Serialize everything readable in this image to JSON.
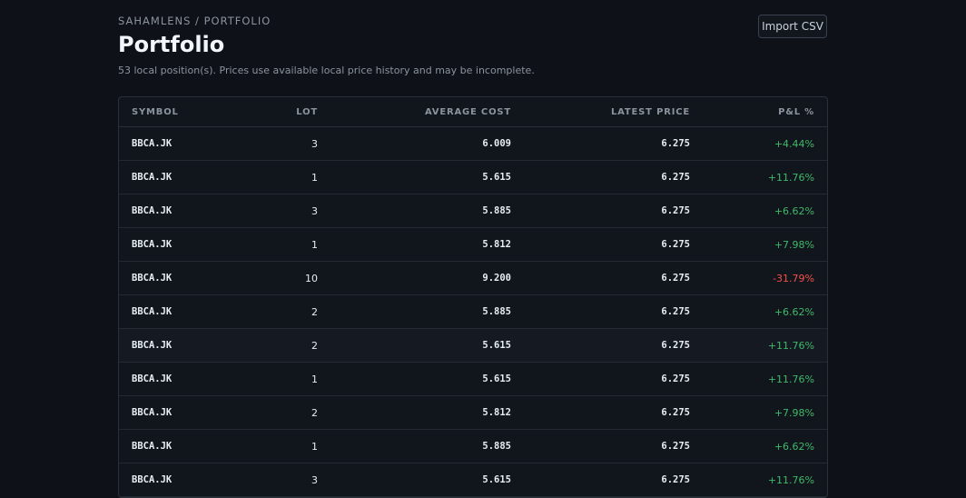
{
  "header": {
    "breadcrumb": "SAHAMLENS / PORTFOLIO",
    "title": "Portfolio",
    "subtitle": "53 local position(s). Prices use available local price history and may be incomplete.",
    "button": "Import CSV"
  },
  "table": {
    "columns": [
      "SYMBOL",
      "LOT",
      "AVERAGE COST",
      "LATEST PRICE",
      "P&L %"
    ],
    "rows": [
      [
        "BBCA.JK",
        "3",
        "6.009",
        "6.275",
        "+4.44%"
      ],
      [
        "BBCA.JK",
        "1",
        "5.615",
        "6.275",
        "+11.76%"
      ],
      [
        "BBCA.JK",
        "3",
        "5.885",
        "6.275",
        "+6.62%"
      ],
      [
        "BBCA.JK",
        "1",
        "5.812",
        "6.275",
        "+7.98%"
      ],
      [
        "BBCA.JK",
        "10",
        "9.200",
        "6.275",
        "-31.79%"
      ],
      [
        "BBCA.JK",
        "2",
        "5.885",
        "6.275",
        "+6.62%"
      ],
      [
        "BBCA.JK",
        "2",
        "5.615",
        "6.275",
        "+11.76%"
      ],
      [
        "BBCA.JK",
        "1",
        "5.615",
        "6.275",
        "+11.76%"
      ],
      [
        "BBCA.JK",
        "2",
        "5.812",
        "6.275",
        "+7.98%"
      ],
      [
        "BBCA.JK",
        "1",
        "5.885",
        "6.275",
        "+6.62%"
      ],
      [
        "BBCA.JK",
        "3",
        "5.615",
        "6.275",
        "+11.76%"
      ]
    ]
  }
}
